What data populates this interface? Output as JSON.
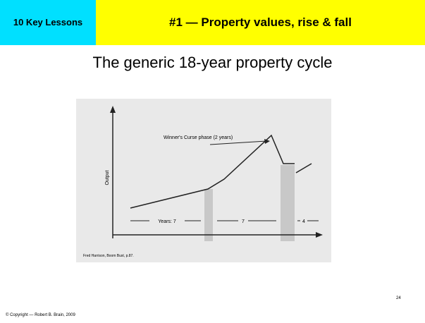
{
  "header": {
    "badge": "10 Key Lessons",
    "title": "#1 — Property values, rise & fall"
  },
  "subtitle": "The generic 18-year property cycle",
  "figure": {
    "y_axis_label": "Output",
    "annotation": "Winner's Curse phase (2 years)",
    "periods": [
      "Years: 7",
      "7",
      "4"
    ],
    "caption": "Fred Harrison, Boom Bust, p.87."
  },
  "footer": {
    "copyright": "© Copyright — Robert B. Brain, 2009",
    "page": "24"
  }
}
